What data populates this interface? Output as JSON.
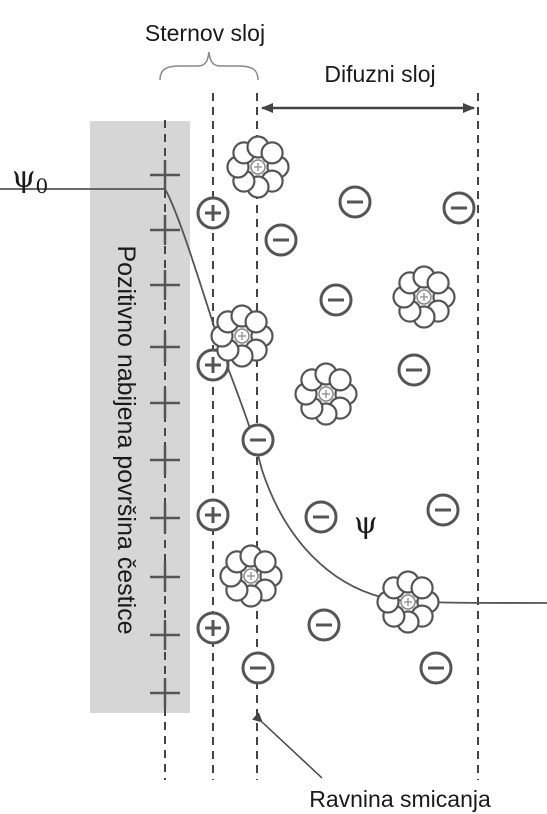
{
  "labels": {
    "stern_layer": "Sternov sloj",
    "diffuse_layer": "Difuzni sloj",
    "surface": "Pozitivno nabijena površina čestice",
    "shear_plane": "Ravnina smicanja",
    "psi0_symbol": "ψ",
    "psi0_subscript": "0",
    "psi": "ψ"
  },
  "symbols": {
    "plus": "+",
    "cation": "⊕",
    "anion": "⊖"
  },
  "colors": {
    "surface_fill": "#d6d6d6",
    "ion_stroke": "#555555",
    "line": "#444444",
    "water_center": "#9a9a9a"
  }
}
